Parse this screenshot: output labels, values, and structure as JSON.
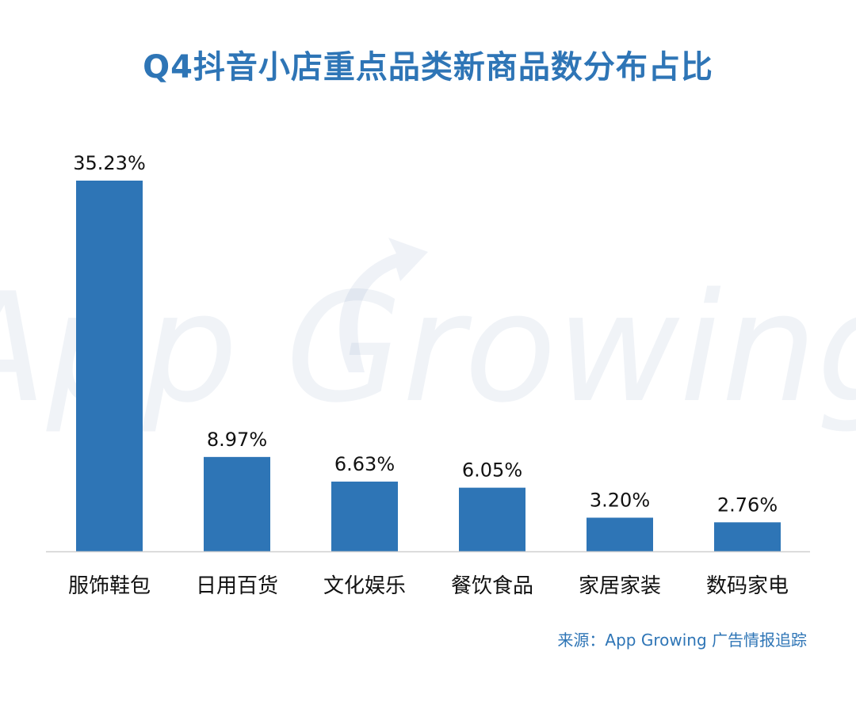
{
  "title": "Q4抖音小店重点品类新商品数分布占比",
  "watermark": "App Growing",
  "source": "来源：App Growing 广告情报追踪",
  "colors": {
    "bar": "#2e75b6",
    "title": "#2e75b6",
    "text": "#111111",
    "axis": "#d0d0d0"
  },
  "chart_data": {
    "type": "bar",
    "categories": [
      "服饰鞋包",
      "日用百货",
      "文化娱乐",
      "餐饮食品",
      "家居家装",
      "数码家电"
    ],
    "values": [
      35.23,
      8.97,
      6.63,
      6.05,
      3.2,
      2.76
    ],
    "value_labels": [
      "35.23%",
      "8.97%",
      "6.63%",
      "6.05%",
      "3.20%",
      "2.76%"
    ],
    "title": "Q4抖音小店重点品类新商品数分布占比",
    "xlabel": "",
    "ylabel": "",
    "ylim": [
      0,
      35.23
    ],
    "grid": false,
    "legend": "none"
  }
}
